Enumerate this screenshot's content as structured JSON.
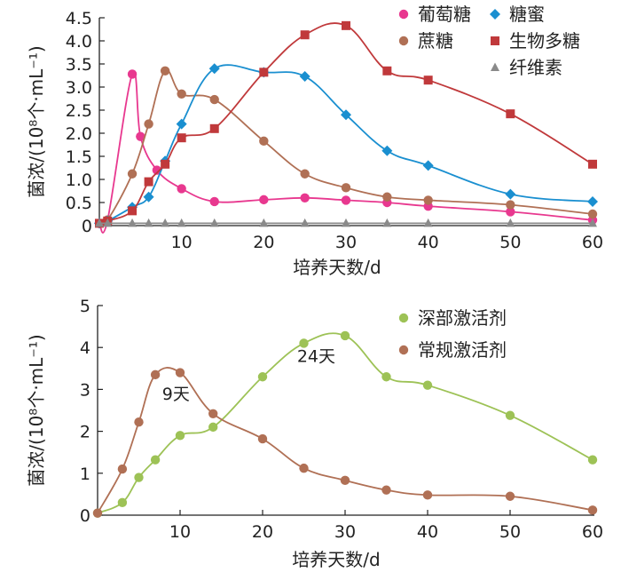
{
  "chart_data": [
    {
      "type": "line",
      "xlabel": "培养天数/d",
      "ylabel": "菌浓/(10⁸个·mL⁻¹)",
      "xlim": [
        0,
        60
      ],
      "ylim": [
        0,
        4.5
      ],
      "xticks": [
        10,
        20,
        30,
        40,
        50,
        60
      ],
      "yticks": [
        0,
        0.5,
        1.0,
        1.5,
        2.0,
        2.5,
        3.0,
        3.5,
        4.0,
        4.5
      ],
      "ytick_labels": [
        "0",
        "0.5",
        "1.0",
        "1.5",
        "2.0",
        "2.5",
        "3.0",
        "3.5",
        "4.0",
        "4.5"
      ],
      "legend_position": "top-right",
      "grid": false,
      "series": [
        {
          "name": "葡萄糖",
          "marker": "circle",
          "color": "#e8388f",
          "x": [
            0,
            1,
            4,
            5,
            7,
            10,
            14,
            20,
            25,
            30,
            35,
            40,
            50,
            60
          ],
          "y": [
            0.05,
            0.12,
            3.28,
            1.93,
            1.2,
            0.8,
            0.52,
            0.56,
            0.6,
            0.55,
            0.5,
            0.42,
            0.3,
            0.12
          ]
        },
        {
          "name": "蔗糖",
          "marker": "circle",
          "color": "#b07055",
          "x": [
            0,
            1,
            4,
            6,
            8,
            10,
            14,
            20,
            25,
            30,
            35,
            40,
            50,
            60
          ],
          "y": [
            0.05,
            0.12,
            1.12,
            2.2,
            3.35,
            2.85,
            2.73,
            1.83,
            1.12,
            0.82,
            0.62,
            0.55,
            0.45,
            0.25
          ]
        },
        {
          "name": "糖蜜",
          "marker": "diamond",
          "color": "#1a8fd0",
          "x": [
            0,
            1,
            4,
            6,
            8,
            10,
            14,
            20,
            25,
            30,
            35,
            40,
            50,
            60
          ],
          "y": [
            0.05,
            0.1,
            0.4,
            0.62,
            1.4,
            2.2,
            3.4,
            3.32,
            3.23,
            2.4,
            1.62,
            1.3,
            0.68,
            0.52
          ]
        },
        {
          "name": "生物多糖",
          "marker": "square",
          "color": "#c0393b",
          "x": [
            0,
            1,
            4,
            6,
            8,
            10,
            14,
            20,
            25,
            30,
            35,
            40,
            50,
            60
          ],
          "y": [
            0.05,
            0.1,
            0.32,
            0.95,
            1.33,
            1.9,
            2.1,
            3.32,
            4.13,
            4.33,
            3.35,
            3.15,
            2.42,
            1.33
          ]
        },
        {
          "name": "纤维素",
          "marker": "triangle",
          "color": "#8a8a8a",
          "x": [
            0,
            1,
            4,
            6,
            8,
            10,
            14,
            20,
            25,
            30,
            35,
            40,
            50,
            60
          ],
          "y": [
            0.05,
            0.05,
            0.05,
            0.05,
            0.05,
            0.05,
            0.05,
            0.05,
            0.05,
            0.05,
            0.05,
            0.05,
            0.05,
            0.05
          ]
        }
      ]
    },
    {
      "type": "line",
      "xlabel": "培养天数/d",
      "ylabel": "菌浓/(10⁸个·mL⁻¹)",
      "xlim": [
        0,
        60
      ],
      "ylim": [
        0,
        5
      ],
      "xticks": [
        10,
        20,
        30,
        40,
        50,
        60
      ],
      "yticks": [
        0,
        1,
        2,
        3,
        4,
        5
      ],
      "ytick_labels": [
        "0",
        "1",
        "2",
        "3",
        "4",
        "5"
      ],
      "legend_position": "top-right",
      "grid": false,
      "annotations": [
        {
          "text": "9天",
          "x": 9.5,
          "y": 2.75
        },
        {
          "text": "24天",
          "x": 26.5,
          "y": 3.65
        }
      ],
      "series": [
        {
          "name": "深部激活剂",
          "marker": "circle",
          "color": "#9dc256",
          "x": [
            0,
            3,
            5,
            7,
            10,
            14,
            20,
            25,
            30,
            35,
            40,
            50,
            60
          ],
          "y": [
            0.05,
            0.3,
            0.9,
            1.32,
            1.9,
            2.1,
            3.3,
            4.1,
            4.28,
            3.3,
            3.1,
            2.38,
            1.32
          ]
        },
        {
          "name": "常规激活剂",
          "marker": "circle",
          "color": "#b07055",
          "x": [
            0,
            3,
            5,
            7,
            10,
            14,
            20,
            25,
            30,
            35,
            40,
            50,
            60
          ],
          "y": [
            0.05,
            1.1,
            2.22,
            3.35,
            3.4,
            2.42,
            1.82,
            1.12,
            0.83,
            0.6,
            0.48,
            0.45,
            0.12
          ]
        }
      ]
    }
  ]
}
